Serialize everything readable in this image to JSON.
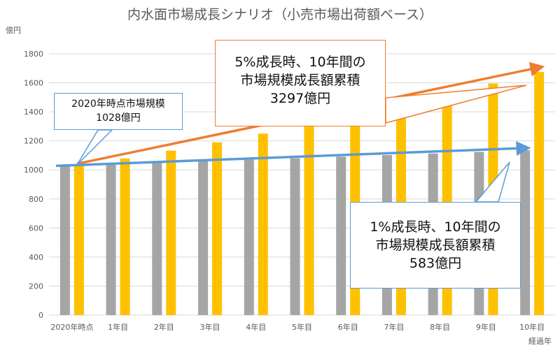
{
  "chart_data": {
    "type": "bar",
    "title": "内水面市場成長シナリオ（小売市場出荷額ベース）",
    "ylabel": "億円",
    "xlabel": "経過年",
    "ylim": [
      0,
      1800
    ],
    "yticks": [
      0,
      200,
      400,
      600,
      800,
      1000,
      1200,
      1400,
      1600,
      1800
    ],
    "grid": true,
    "categories": [
      "2020年時点",
      "1年目",
      "2年目",
      "3年目",
      "4年目",
      "5年目",
      "6年目",
      "7年目",
      "8年目",
      "9年目",
      "10年目"
    ],
    "series": [
      {
        "values": [
          1028,
          1038,
          1049,
          1059,
          1070,
          1080,
          1091,
          1102,
          1113,
          1124,
          1136
        ]
      },
      {
        "values": [
          1028,
          1079,
          1133,
          1190,
          1250,
          1312,
          1378,
          1447,
          1519,
          1595,
          1675
        ]
      }
    ],
    "annotations": {
      "start": [
        "2020年時点市場規模",
        "1028億円"
      ],
      "growth5": [
        "5%成長時、10年間の",
        "市場規模成長額累積",
        "3297億円"
      ],
      "growth1": [
        "1%成長時、10年間の",
        "市場規模成長額累積",
        "583億円"
      ]
    }
  },
  "colors": {
    "series_1": "#a5a5a5",
    "series_5": "#ffc000",
    "arrow_5": "#ed7d31",
    "arrow_1": "#5b9bd5",
    "grid": "#d9d9d9",
    "tick_text": "#595959"
  }
}
